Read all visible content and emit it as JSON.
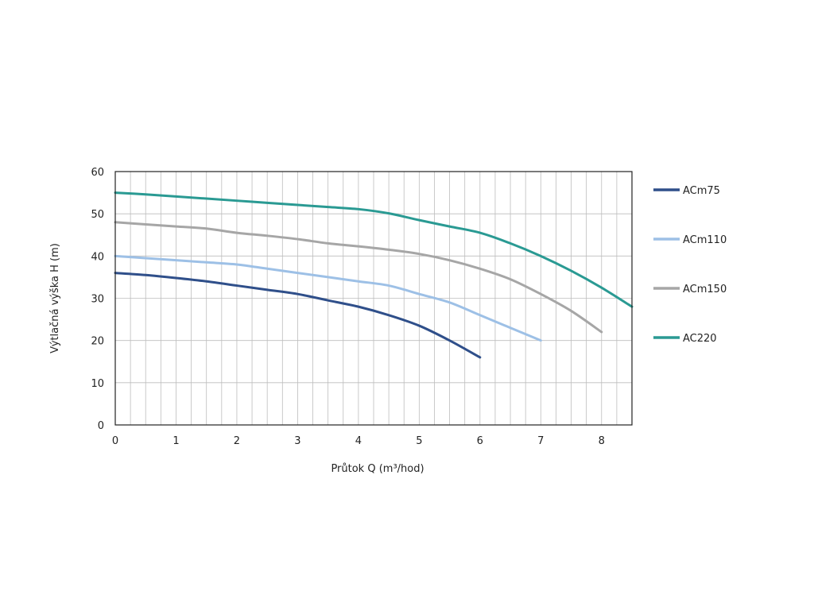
{
  "chart_data": {
    "type": "line",
    "title": "",
    "xlabel": "Průtok Q (m³/hod)",
    "ylabel": "Výtlačná výška H (m)",
    "xlim": [
      0,
      8.5
    ],
    "ylim": [
      0,
      60
    ],
    "x_ticks": [
      "0",
      "1",
      "2",
      "3",
      "4",
      "5",
      "6",
      "7",
      "8"
    ],
    "y_ticks": [
      "0",
      "10",
      "20",
      "30",
      "40",
      "50",
      "60"
    ],
    "grid": true,
    "legend_position": "right",
    "series": [
      {
        "name": "ACm75",
        "color": "#2f4f8a",
        "x": [
          0,
          0.5,
          1,
          1.5,
          2,
          2.5,
          3,
          3.5,
          4,
          4.5,
          5,
          5.5,
          6
        ],
        "y": [
          36,
          35.5,
          34.8,
          34,
          33,
          32,
          31,
          29.5,
          28,
          26,
          23.5,
          20,
          16
        ]
      },
      {
        "name": "ACm110",
        "color": "#9dc0e6",
        "x": [
          0,
          0.5,
          1,
          1.5,
          2,
          2.5,
          3,
          3.5,
          4,
          4.5,
          5,
          5.5,
          6,
          6.5,
          7
        ],
        "y": [
          40,
          39.5,
          39,
          38.5,
          38,
          37,
          36,
          35,
          34,
          33,
          31,
          29,
          26,
          23,
          20
        ]
      },
      {
        "name": "ACm150",
        "color": "#a6a6a6",
        "x": [
          0,
          0.5,
          1,
          1.5,
          2,
          2.5,
          3,
          3.5,
          4,
          4.5,
          5,
          5.5,
          6,
          6.5,
          7,
          7.5,
          8
        ],
        "y": [
          48,
          47.5,
          47,
          46.5,
          45.5,
          44.8,
          44,
          43,
          42.3,
          41.5,
          40.5,
          39,
          37,
          34.5,
          31,
          27,
          22
        ]
      },
      {
        "name": "AC220",
        "color": "#2a9a93",
        "x": [
          0,
          0.5,
          1,
          1.5,
          2,
          2.5,
          3,
          3.5,
          4,
          4.5,
          5,
          5.5,
          6,
          6.5,
          7,
          7.5,
          8,
          8.5
        ],
        "y": [
          55,
          54.6,
          54.1,
          53.6,
          53.1,
          52.6,
          52.1,
          51.6,
          51.1,
          50.1,
          48.5,
          47,
          45.5,
          43,
          40,
          36.5,
          32.5,
          28
        ]
      }
    ]
  }
}
